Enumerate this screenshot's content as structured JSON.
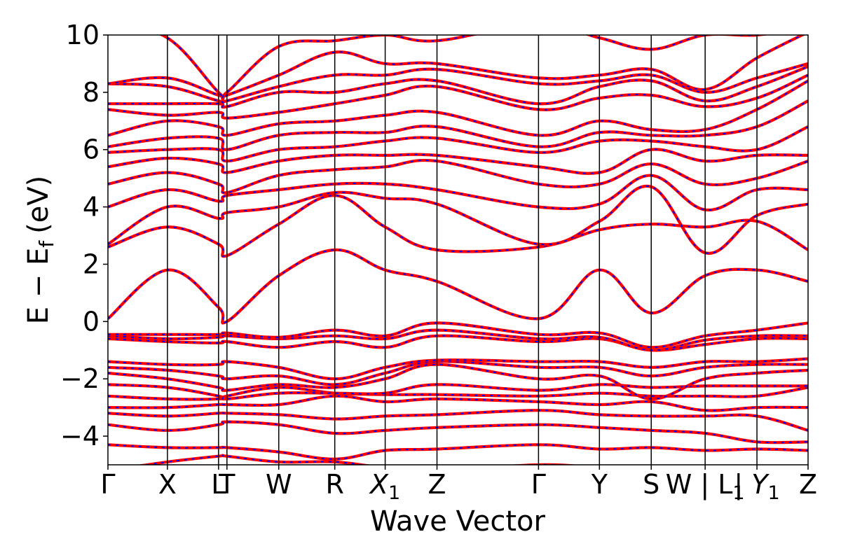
{
  "chart_data": {
    "type": "line",
    "title": "",
    "xlabel": "Wave Vector",
    "ylabel": "E − E",
    "ylabel_subscript": "f",
    "ylabel_unit": "(eV)",
    "ylim": [
      -5,
      10
    ],
    "yticks": [
      -4,
      -2,
      0,
      2,
      4,
      6,
      8,
      10
    ],
    "ytick_labels": [
      "−4",
      "−2",
      "0",
      "2",
      "4",
      "6",
      "8",
      "10"
    ],
    "grid": false,
    "legend": "none",
    "style": {
      "band_color": "#ff0000",
      "overlay_color": "#0000ff",
      "overlay_dashed": true,
      "kpath_line_color": "#000000"
    },
    "kpath": [
      {
        "label": "Γ",
        "sub": "",
        "italic": false,
        "x": 0.0
      },
      {
        "label": "X",
        "sub": "",
        "italic": false,
        "x": 0.085
      },
      {
        "label": "L",
        "sub": "",
        "italic": false,
        "x": 0.158
      },
      {
        "label": "T",
        "sub": "",
        "italic": false,
        "x": 0.17
      },
      {
        "label": "W",
        "sub": "",
        "italic": false,
        "x": 0.244
      },
      {
        "label": "R",
        "sub": "",
        "italic": false,
        "x": 0.324
      },
      {
        "label": "X",
        "sub": "1",
        "italic": true,
        "x": 0.396
      },
      {
        "label": "Z",
        "sub": "",
        "italic": false,
        "x": 0.47
      },
      {
        "label": "Γ",
        "sub": "",
        "italic": false,
        "x": 0.615
      },
      {
        "label": "Y",
        "sub": "",
        "italic": false,
        "x": 0.702
      },
      {
        "label": "S",
        "sub": "",
        "italic": false,
        "x": 0.776
      },
      {
        "label": "W | L",
        "sub": "1",
        "italic": false,
        "x": 0.853
      },
      {
        "label": "| Y",
        "sub": "1",
        "italic": true,
        "x": 0.927
      },
      {
        "label": "Z",
        "sub": "",
        "italic": false,
        "x": 1.0
      }
    ],
    "series": [
      {
        "values": [
          -5.2,
          -4.9,
          -4.7,
          -4.7,
          -4.9,
          -4.9,
          -5.1,
          -5.2,
          -5.0,
          -5.1,
          -5.2,
          -5.1,
          -5.2,
          -5.1
        ]
      },
      {
        "values": [
          -4.3,
          -4.4,
          -4.4,
          -4.4,
          -4.55,
          -4.8,
          -4.5,
          -4.45,
          -4.3,
          -4.45,
          -4.4,
          -4.5,
          -4.45,
          -4.5
        ]
      },
      {
        "values": [
          -3.6,
          -3.8,
          -3.6,
          -3.5,
          -3.6,
          -3.9,
          -3.8,
          -3.7,
          -3.6,
          -3.7,
          -3.8,
          -3.9,
          -4.2,
          -4.2
        ]
      },
      {
        "values": [
          -3.2,
          -3.3,
          -3.2,
          -3.2,
          -3.25,
          -3.4,
          -3.3,
          -3.25,
          -3.1,
          -3.25,
          -3.3,
          -3.3,
          -3.3,
          -3.8
        ]
      },
      {
        "values": [
          -3.0,
          -3.0,
          -2.9,
          -2.9,
          -2.9,
          -2.6,
          -2.8,
          -2.7,
          -2.8,
          -2.9,
          -2.8,
          -3.1,
          -3.0,
          -3.0
        ]
      },
      {
        "values": [
          -2.6,
          -2.7,
          -2.7,
          -2.6,
          -2.3,
          -2.5,
          -2.55,
          -2.55,
          -2.6,
          -2.5,
          -2.6,
          -2.6,
          -2.6,
          -2.3
        ]
      },
      {
        "values": [
          -2.2,
          -2.3,
          -2.6,
          -2.7,
          -2.5,
          -2.5,
          -2.5,
          -2.2,
          -2.4,
          -2.2,
          -2.3,
          -2.25,
          -2.25,
          -2.25
        ]
      },
      {
        "values": [
          -1.8,
          -2.0,
          -2.3,
          -2.4,
          -2.2,
          -2.3,
          -2.0,
          -1.5,
          -2.0,
          -1.9,
          -2.7,
          -2.0,
          -1.8,
          -1.7
        ]
      },
      {
        "values": [
          -1.6,
          -1.7,
          -1.9,
          -2.0,
          -1.9,
          -2.2,
          -1.8,
          -1.4,
          -1.6,
          -1.6,
          -1.9,
          -1.6,
          -1.5,
          -1.5
        ]
      },
      {
        "values": [
          -1.4,
          -1.5,
          -1.5,
          -1.4,
          -1.6,
          -2.0,
          -1.6,
          -1.35,
          -1.4,
          -1.4,
          -1.6,
          -1.4,
          -1.4,
          -1.3
        ]
      },
      {
        "values": [
          -0.6,
          -0.7,
          -0.75,
          -0.7,
          -0.9,
          -0.7,
          -0.9,
          -0.5,
          -0.7,
          -0.6,
          -1.0,
          -0.8,
          -0.6,
          -0.6
        ]
      },
      {
        "values": [
          -0.5,
          -0.6,
          -0.55,
          -0.5,
          -0.6,
          -0.5,
          -0.6,
          -0.3,
          -0.6,
          -0.55,
          -1.0,
          -0.65,
          -0.5,
          -0.5
        ]
      },
      {
        "values": [
          -0.45,
          -0.45,
          -0.45,
          -0.4,
          -0.55,
          -0.3,
          -0.5,
          -0.05,
          -0.45,
          -0.4,
          -0.9,
          -0.5,
          -0.3,
          -0.05
        ]
      },
      {
        "values": [
          0.1,
          1.8,
          0.5,
          0.0,
          1.6,
          2.5,
          1.8,
          1.4,
          0.1,
          1.8,
          0.3,
          1.6,
          1.8,
          1.4
        ]
      },
      {
        "values": [
          2.6,
          3.3,
          2.7,
          2.3,
          3.4,
          4.4,
          3.3,
          2.5,
          2.6,
          3.2,
          3.4,
          3.3,
          3.5,
          2.5
        ]
      },
      {
        "values": [
          2.7,
          4.0,
          3.6,
          3.8,
          4.0,
          4.5,
          4.3,
          4.1,
          2.7,
          3.5,
          4.7,
          2.4,
          3.7,
          4.1
        ]
      },
      {
        "values": [
          4.0,
          4.6,
          4.2,
          4.4,
          4.6,
          4.8,
          4.8,
          4.6,
          4.0,
          4.1,
          5.1,
          3.9,
          4.6,
          4.6
        ]
      },
      {
        "values": [
          4.8,
          5.2,
          4.8,
          4.5,
          5.1,
          5.3,
          5.4,
          5.6,
          4.8,
          4.8,
          5.5,
          4.8,
          5.0,
          5.6
        ]
      },
      {
        "values": [
          5.4,
          5.7,
          5.5,
          5.2,
          5.6,
          5.8,
          5.8,
          5.8,
          5.4,
          5.2,
          6.0,
          5.6,
          5.8,
          5.8
        ]
      },
      {
        "values": [
          5.9,
          6.0,
          6.0,
          5.6,
          6.0,
          6.1,
          6.3,
          6.4,
          5.9,
          6.3,
          6.3,
          6.1,
          6.0,
          6.8
        ]
      },
      {
        "values": [
          6.1,
          6.4,
          6.4,
          6.0,
          6.5,
          6.6,
          6.6,
          6.8,
          6.1,
          6.6,
          6.5,
          6.5,
          6.8,
          7.7
        ]
      },
      {
        "values": [
          6.5,
          7.0,
          6.8,
          6.5,
          6.9,
          7.0,
          7.2,
          7.3,
          6.5,
          7.0,
          6.7,
          6.7,
          7.4,
          8.4
        ]
      },
      {
        "values": [
          7.4,
          7.2,
          7.3,
          7.1,
          7.3,
          7.6,
          7.9,
          8.2,
          7.4,
          7.8,
          7.9,
          7.5,
          7.8,
          8.6
        ]
      },
      {
        "values": [
          7.6,
          7.6,
          7.6,
          7.5,
          8.0,
          8.0,
          8.3,
          8.4,
          7.6,
          8.2,
          8.4,
          7.7,
          8.2,
          8.9
        ]
      },
      {
        "values": [
          8.3,
          8.2,
          7.7,
          7.7,
          8.2,
          8.6,
          8.6,
          8.8,
          8.3,
          8.4,
          8.6,
          8.0,
          8.5,
          9.0
        ]
      },
      {
        "values": [
          8.3,
          8.5,
          7.9,
          7.9,
          8.6,
          9.4,
          9.0,
          9.0,
          8.5,
          8.6,
          8.8,
          8.1,
          9.2,
          10.1
        ]
      },
      {
        "values": [
          10.4,
          9.9,
          8.0,
          8.0,
          9.6,
          9.8,
          10.0,
          9.8,
          10.4,
          9.9,
          9.5,
          10.0,
          10.0,
          10.3
        ]
      }
    ]
  }
}
